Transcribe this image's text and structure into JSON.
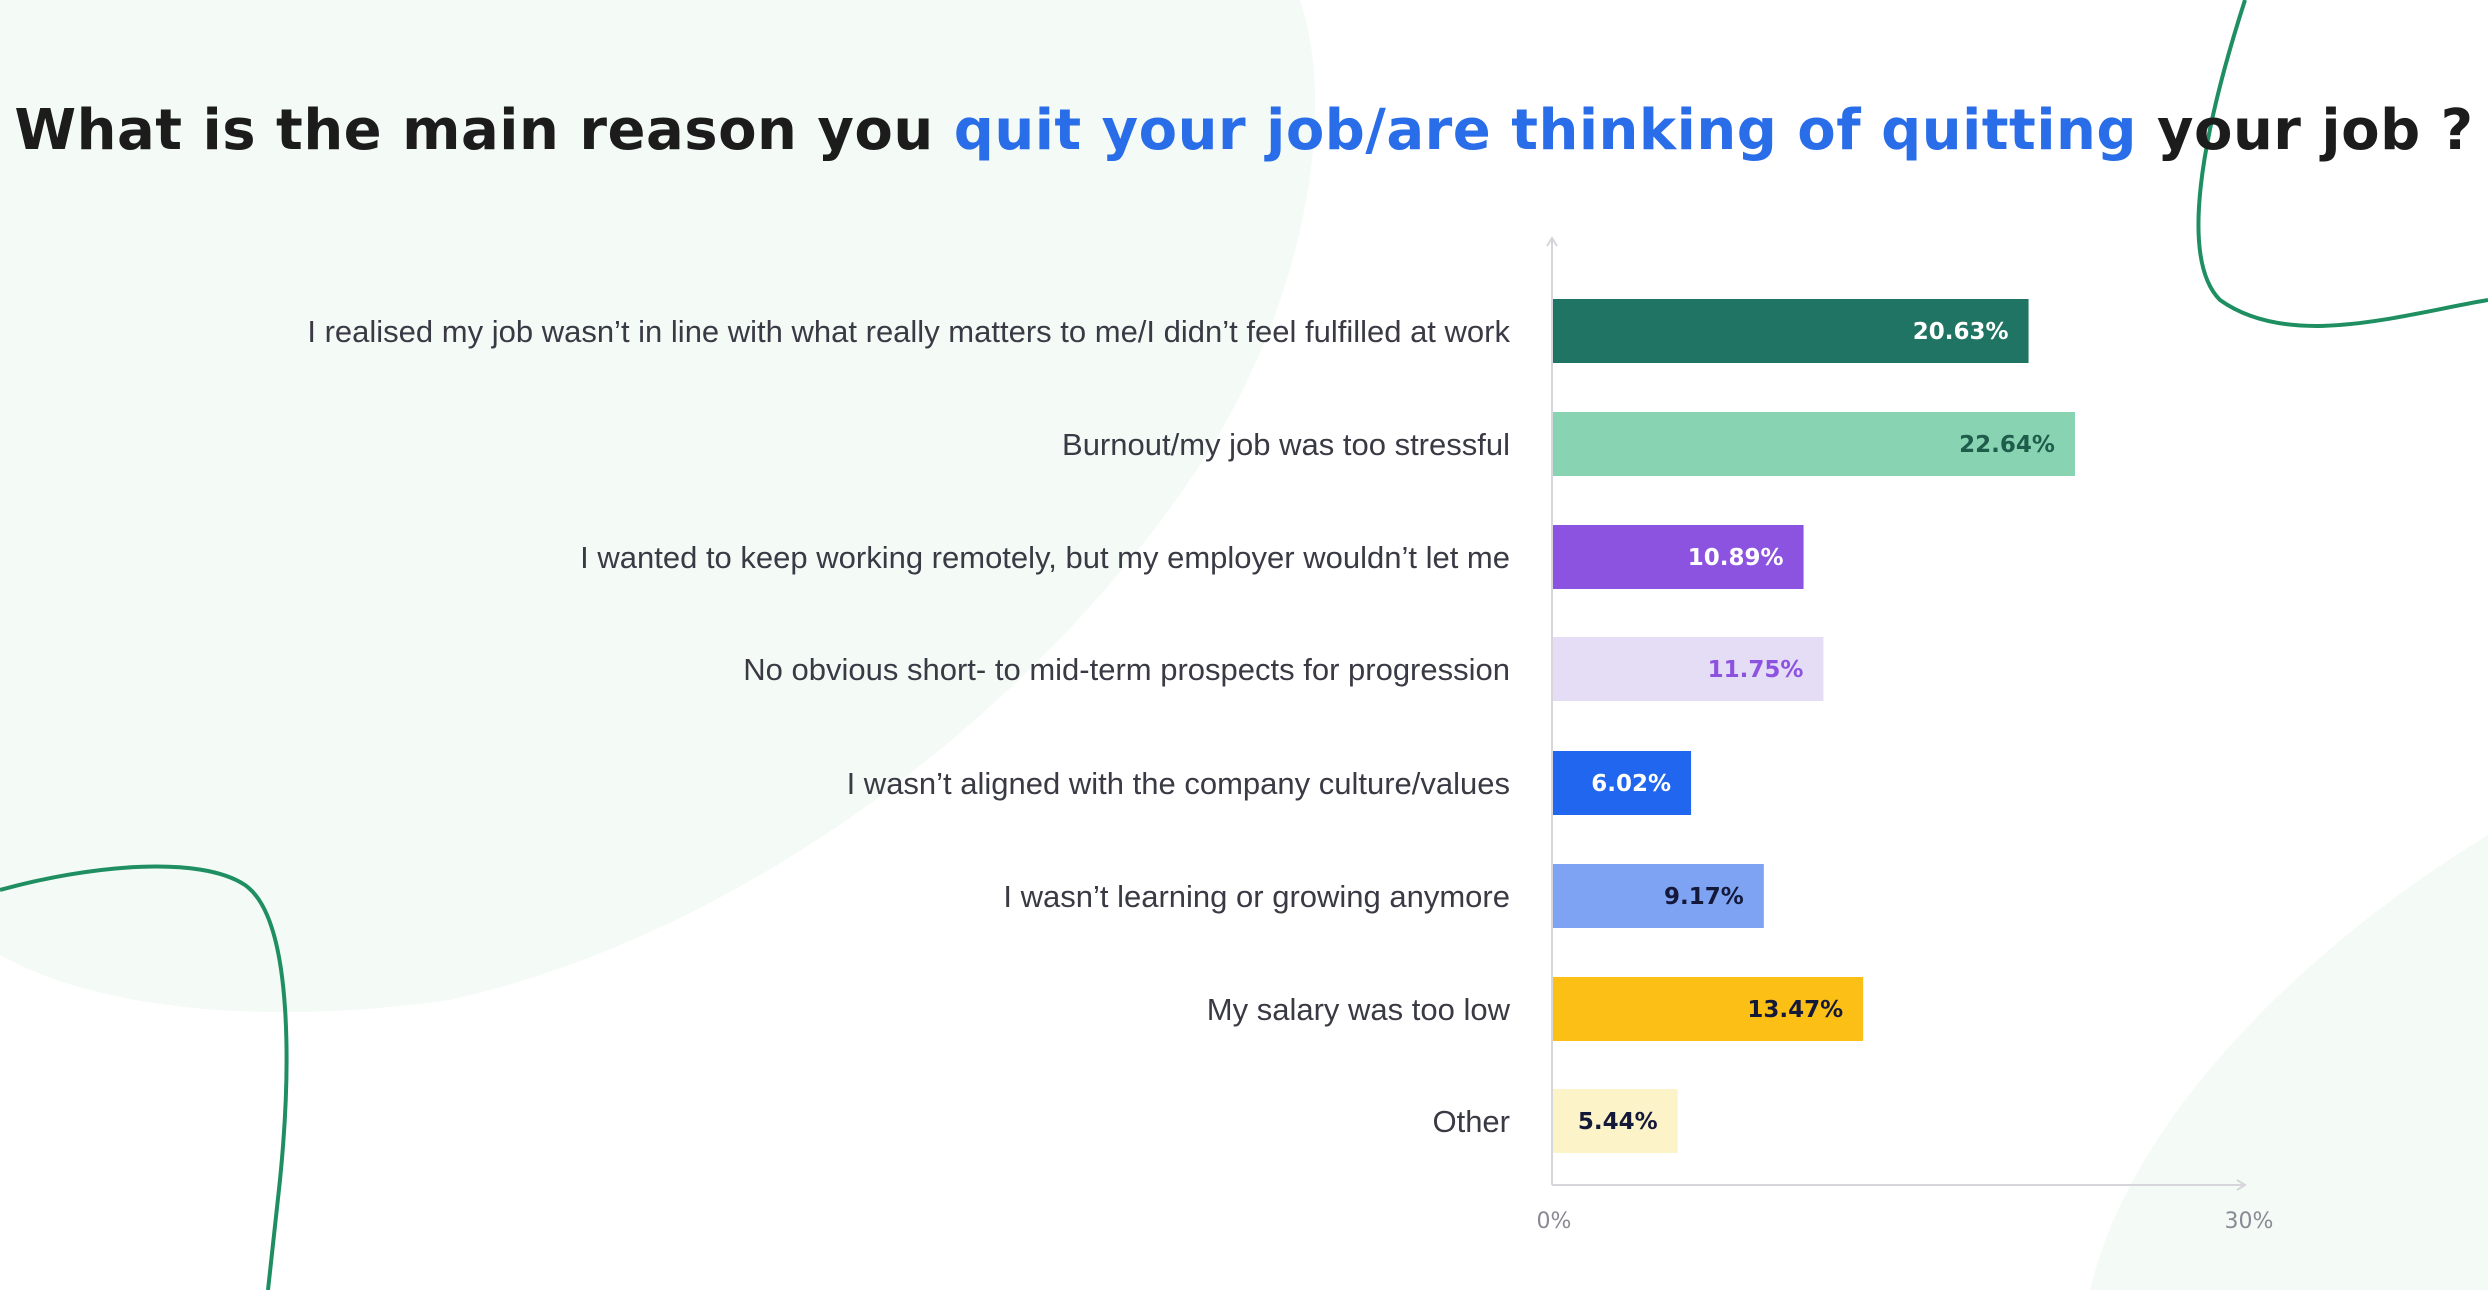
{
  "title": {
    "part1": "What is the main reason you ",
    "accent": "quit your job/are thinking of quitting",
    "part2": " your job ?"
  },
  "colors": {
    "title": "#1c1c1c",
    "title_accent": "#2a6de8",
    "axis": "#d5d5da",
    "decor_blob": "#f4faf6",
    "decor_line": "#1f8f62"
  },
  "chart_data": {
    "type": "bar",
    "orientation": "horizontal",
    "xlim": [
      0,
      30
    ],
    "x_ticks": [
      "0%",
      "30%"
    ],
    "grid": false,
    "categories": [
      "I realised my job wasn’t in line with what really matters to me/I didn’t feel fulfilled at work",
      "Burnout/my job was too stressful",
      "I wanted to keep working remotely, but my employer wouldn’t let me",
      "No obvious short- to mid-term prospects for progression",
      "I wasn’t aligned with the company culture/values",
      "I wasn’t learning or growing anymore",
      "My salary was too low",
      "Other"
    ],
    "values": [
      20.63,
      22.64,
      10.89,
      11.75,
      6.02,
      9.17,
      13.47,
      5.44
    ],
    "value_labels": [
      "20.63%",
      "22.64%",
      "10.89%",
      "11.75%",
      "6.02%",
      "9.17%",
      "13.47%",
      "5.44%"
    ],
    "bar_colors": [
      "#207463",
      "#88d3b1",
      "#8c52e0",
      "#e5dcf6",
      "#2166ee",
      "#7ea3f3",
      "#fbbf16",
      "#fdf3c8"
    ],
    "label_colors": [
      "#ffffff",
      "#1e5c4b",
      "#ffffff",
      "#8c52e0",
      "#ffffff",
      "#14193a",
      "#14193a",
      "#14193a"
    ]
  }
}
